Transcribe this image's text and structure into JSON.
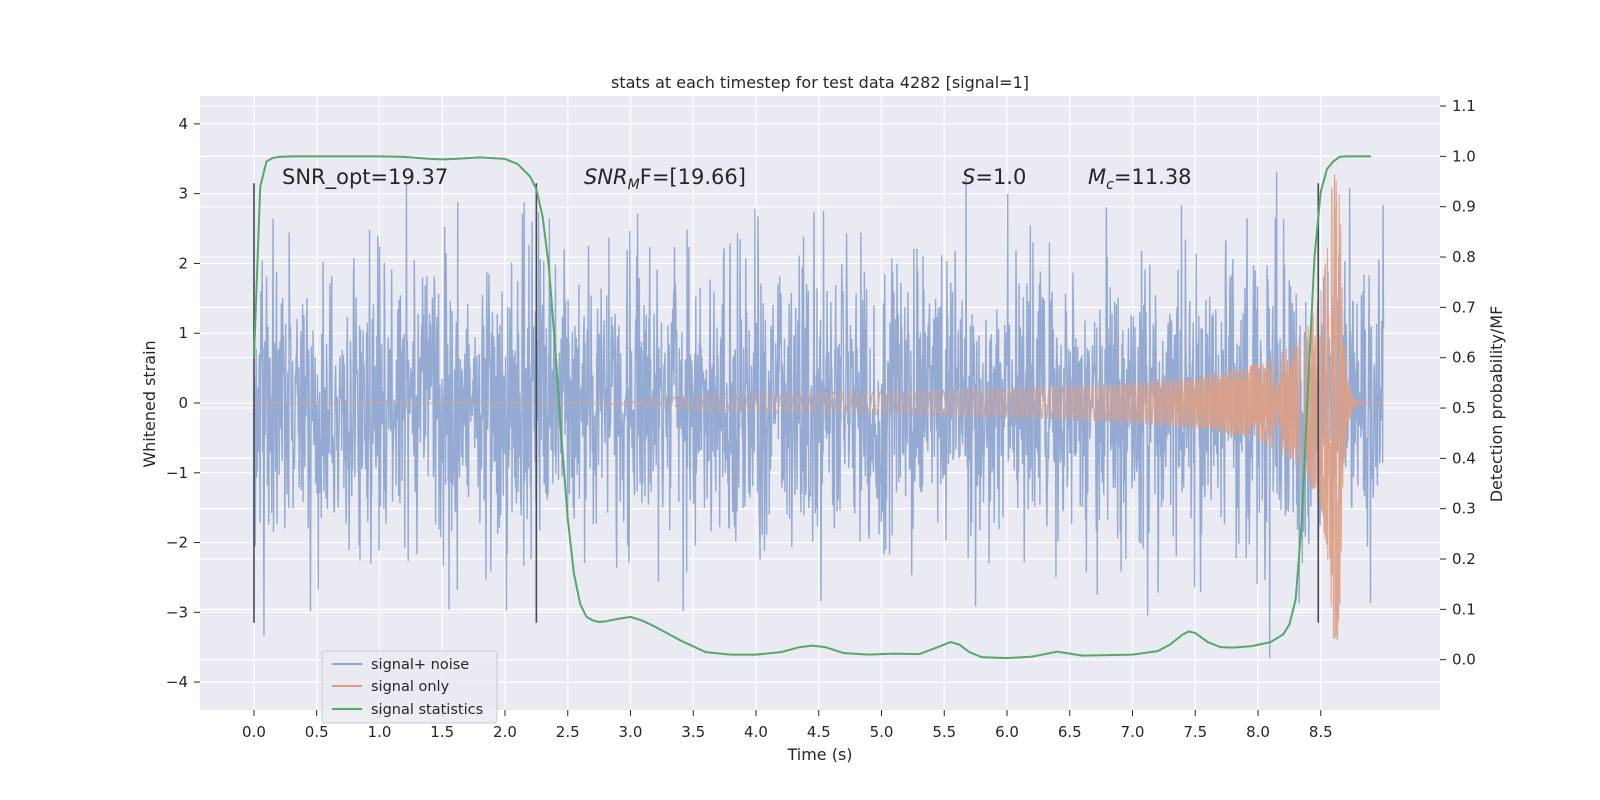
{
  "chart_data": {
    "type": "line",
    "title": "stats at each timestep for test data 4282 [signal=1]",
    "xlabel": "Time (s)",
    "ylabel": "Whitened strain",
    "y2label": "Detection probability/MF",
    "xlim": [
      -0.43,
      9.45
    ],
    "ylim": [
      -4.4,
      4.4
    ],
    "y2lim": [
      -0.1,
      1.12
    ],
    "x_ticks": [
      "0.0",
      "0.5",
      "1.0",
      "1.5",
      "2.0",
      "2.5",
      "3.0",
      "3.5",
      "4.0",
      "4.5",
      "5.0",
      "5.5",
      "6.0",
      "6.5",
      "7.0",
      "7.5",
      "8.0",
      "8.5"
    ],
    "y_ticks": [
      "4",
      "3",
      "2",
      "1",
      "0",
      "−1",
      "−2",
      "−3",
      "−4"
    ],
    "y2_ticks": [
      "1.1",
      "1.0",
      "0.9",
      "0.8",
      "0.7",
      "0.6",
      "0.5",
      "0.4",
      "0.3",
      "0.2",
      "0.1",
      "0.0"
    ],
    "grid": true,
    "legend_position": "lower-left",
    "annotations": {
      "snr_opt": "SNR_opt=19.37",
      "snr_mf_label": "SNR",
      "snr_mf_sub": "M",
      "snr_mf_rest": "F=[19.66]",
      "s_label": "S",
      "s_rest": "=1.0",
      "mc_label": "M",
      "mc_sub": "c",
      "mc_rest": "=11.38"
    },
    "vertical_markers": [
      0.0,
      2.25,
      8.48
    ],
    "series": [
      {
        "name": "signal+ noise",
        "color": "#8fa6d0",
        "kind": "noise",
        "x_range": [
          0.0,
          9.0
        ],
        "typical_amplitude": 1.25,
        "peak_range": [
          -4.0,
          4.0
        ]
      },
      {
        "name": "signal only",
        "color": "#dd9f84",
        "kind": "chirp",
        "x_range": [
          0.0,
          9.0
        ],
        "merger_time": 8.65,
        "peak_amplitude": 3.4
      },
      {
        "name": "signal statistics",
        "color": "#55a868",
        "kind": "line",
        "axis": "right",
        "x": [
          0.0,
          0.05,
          0.1,
          0.15,
          0.2,
          0.3,
          0.5,
          0.8,
          1.0,
          1.2,
          1.4,
          1.5,
          1.6,
          1.8,
          2.0,
          2.1,
          2.2,
          2.25,
          2.3,
          2.35,
          2.4,
          2.45,
          2.5,
          2.55,
          2.6,
          2.65,
          2.7,
          2.75,
          2.8,
          2.9,
          3.0,
          3.1,
          3.2,
          3.4,
          3.6,
          3.8,
          4.0,
          4.2,
          4.35,
          4.45,
          4.55,
          4.7,
          4.9,
          5.1,
          5.3,
          5.45,
          5.55,
          5.62,
          5.7,
          5.8,
          6.0,
          6.2,
          6.4,
          6.5,
          6.6,
          6.8,
          7.0,
          7.2,
          7.3,
          7.4,
          7.45,
          7.5,
          7.6,
          7.7,
          7.8,
          7.95,
          8.1,
          8.2,
          8.25,
          8.3,
          8.35,
          8.4,
          8.45,
          8.5,
          8.55,
          8.6,
          8.65,
          8.7,
          8.75,
          8.8,
          8.85,
          8.9
        ],
        "y": [
          0.6,
          0.94,
          0.99,
          0.997,
          0.999,
          1.0,
          1.0,
          1.0,
          1.0,
          0.999,
          0.995,
          0.994,
          0.995,
          0.998,
          0.995,
          0.985,
          0.96,
          0.935,
          0.88,
          0.78,
          0.62,
          0.44,
          0.28,
          0.17,
          0.11,
          0.085,
          0.078,
          0.075,
          0.076,
          0.081,
          0.085,
          0.077,
          0.065,
          0.038,
          0.015,
          0.01,
          0.01,
          0.015,
          0.025,
          0.028,
          0.025,
          0.013,
          0.01,
          0.012,
          0.011,
          0.025,
          0.035,
          0.03,
          0.015,
          0.005,
          0.003,
          0.006,
          0.016,
          0.012,
          0.008,
          0.009,
          0.01,
          0.017,
          0.03,
          0.05,
          0.056,
          0.053,
          0.035,
          0.025,
          0.024,
          0.027,
          0.035,
          0.05,
          0.07,
          0.12,
          0.28,
          0.55,
          0.8,
          0.93,
          0.975,
          0.99,
          0.999,
          1.0,
          1.0,
          1.0,
          1.0,
          1.0
        ]
      }
    ]
  }
}
